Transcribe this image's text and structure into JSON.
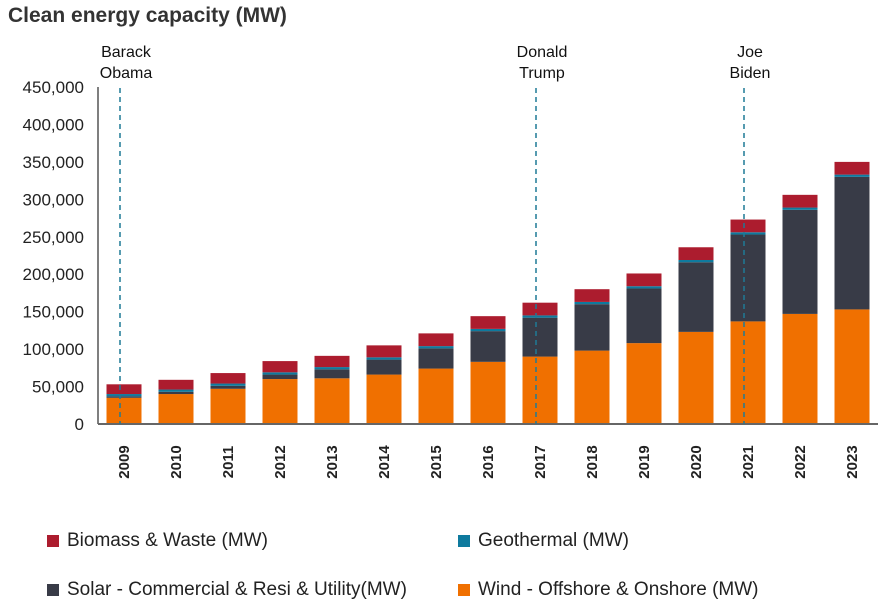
{
  "chart_data": {
    "type": "bar",
    "stacked": true,
    "title": "Clean energy capacity (MW)",
    "xlabel": "",
    "ylabel": "",
    "ylim": [
      0,
      450000
    ],
    "yticks": [
      0,
      50000,
      100000,
      150000,
      200000,
      250000,
      300000,
      350000,
      400000,
      450000
    ],
    "ytick_labels": [
      "0",
      "50,000",
      "100,000",
      "150,000",
      "200,000",
      "250,000",
      "300,000",
      "350,000",
      "400,000",
      "450,000"
    ],
    "grid": false,
    "categories": [
      "2009",
      "2010",
      "2011",
      "2012",
      "2013",
      "2014",
      "2015",
      "2016",
      "2017",
      "2018",
      "2019",
      "2020",
      "2021",
      "2022",
      "2023"
    ],
    "series": [
      {
        "name": "Wind - Offshore & Onshore (MW)",
        "color": "#F07000",
        "values": [
          35000,
          40000,
          47000,
          60000,
          61000,
          66000,
          74000,
          83000,
          90000,
          98000,
          108000,
          123000,
          137000,
          147000,
          153000
        ]
      },
      {
        "name": "Solar - Commercial & Resi & Utility(MW)",
        "color": "#383B47",
        "values": [
          2000,
          3000,
          4000,
          6000,
          12000,
          20000,
          27000,
          41000,
          52000,
          62000,
          73000,
          93000,
          116000,
          139000,
          177000
        ]
      },
      {
        "name": "Geothermal (MW)",
        "color": "#0E7A9E",
        "values": [
          3000,
          3000,
          3000,
          3000,
          3000,
          3000,
          3000,
          3000,
          3000,
          3000,
          3000,
          3000,
          3000,
          3000,
          3000
        ]
      },
      {
        "name": "Biomass & Waste (MW)",
        "color": "#AC1C2E",
        "values": [
          13000,
          13000,
          14000,
          15000,
          15000,
          16000,
          17000,
          17000,
          17000,
          17000,
          17000,
          17000,
          17000,
          17000,
          17000
        ]
      }
    ],
    "annotations": [
      {
        "category": "2009",
        "label_lines": [
          "Barack",
          "Obama"
        ],
        "style": "dashed-vertical-line"
      },
      {
        "category": "2017",
        "label_lines": [
          "Donald",
          "Trump"
        ],
        "style": "dashed-vertical-line"
      },
      {
        "category": "2021",
        "label_lines": [
          "Joe",
          "Biden"
        ],
        "style": "dashed-vertical-line"
      }
    ],
    "annotation_color": "#1F7A96",
    "legend": {
      "placement": "bottom",
      "order": [
        "Biomass & Waste (MW)",
        "Geothermal (MW)",
        "Solar - Commercial & Resi & Utility(MW)",
        "Wind - Offshore & Onshore (MW)"
      ]
    }
  }
}
